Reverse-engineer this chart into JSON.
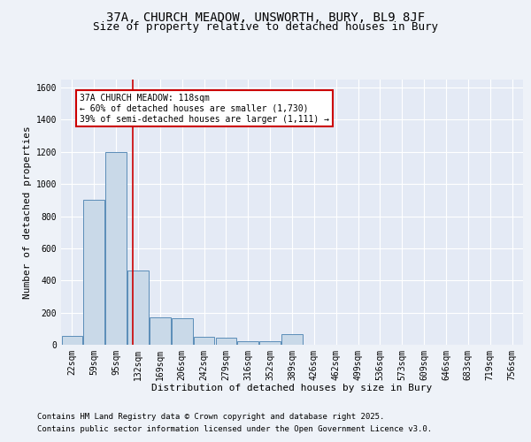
{
  "title1": "37A, CHURCH MEADOW, UNSWORTH, BURY, BL9 8JF",
  "title2": "Size of property relative to detached houses in Bury",
  "xlabel": "Distribution of detached houses by size in Bury",
  "ylabel": "Number of detached properties",
  "categories": [
    "22sqm",
    "59sqm",
    "95sqm",
    "132sqm",
    "169sqm",
    "206sqm",
    "242sqm",
    "279sqm",
    "316sqm",
    "352sqm",
    "389sqm",
    "426sqm",
    "462sqm",
    "499sqm",
    "536sqm",
    "573sqm",
    "609sqm",
    "646sqm",
    "683sqm",
    "719sqm",
    "756sqm"
  ],
  "bar_heights": [
    55,
    900,
    1200,
    460,
    170,
    165,
    50,
    45,
    20,
    20,
    65,
    0,
    0,
    0,
    0,
    0,
    0,
    0,
    0,
    0,
    0
  ],
  "bar_color": "#c9d9e8",
  "bar_edge_color": "#5b8db8",
  "ylim": [
    0,
    1650
  ],
  "yticks": [
    0,
    200,
    400,
    600,
    800,
    1000,
    1200,
    1400,
    1600
  ],
  "vline_x": 2.75,
  "vline_color": "#cc0000",
  "annotation_text": "37A CHURCH MEADOW: 118sqm\n← 60% of detached houses are smaller (1,730)\n39% of semi-detached houses are larger (1,111) →",
  "annotation_box_color": "#ffffff",
  "annotation_box_edge_color": "#cc0000",
  "footer_line1": "Contains HM Land Registry data © Crown copyright and database right 2025.",
  "footer_line2": "Contains public sector information licensed under the Open Government Licence v3.0.",
  "bg_color": "#eef2f8",
  "plot_bg_color": "#e4eaf5",
  "grid_color": "#ffffff",
  "title_fontsize": 10,
  "title2_fontsize": 9,
  "axis_label_fontsize": 8,
  "tick_fontsize": 7,
  "footer_fontsize": 6.5,
  "annot_fontsize": 7
}
